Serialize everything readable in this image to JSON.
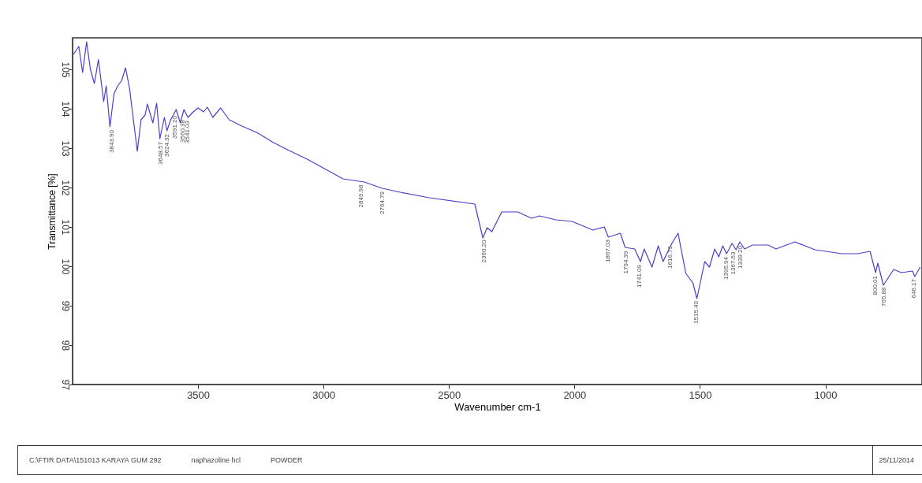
{
  "chart_data": {
    "type": "line",
    "xlabel": "Wavenumber cm-1",
    "ylabel": "Transmittance [%]",
    "x": [
      3997,
      3975,
      3960,
      3944,
      3929,
      3913,
      3897,
      3876,
      3866,
      3851,
      3835,
      3820,
      3804,
      3789,
      3773,
      3742,
      3727,
      3711,
      3702,
      3680,
      3665,
      3652,
      3634,
      3624,
      3609,
      3587,
      3571,
      3556,
      3540,
      3519,
      3500,
      3478,
      3463,
      3441,
      3410,
      3376,
      3332,
      3261,
      3199,
      3137,
      3065,
      2922,
      2837,
      2766,
      2694,
      2578,
      2397,
      2365,
      2348,
      2329,
      2290,
      2226,
      2171,
      2139,
      2074,
      2010,
      1926,
      1881,
      1865,
      1817,
      1798,
      1760,
      1737,
      1722,
      1691,
      1666,
      1647,
      1612,
      1587,
      1556,
      1528,
      1512,
      1481,
      1462,
      1441,
      1425,
      1409,
      1394,
      1372,
      1356,
      1341,
      1322,
      1291,
      1228,
      1197,
      1122,
      1041,
      934,
      872,
      822,
      800,
      791,
      769,
      728,
      697,
      653,
      644,
      622
    ],
    "values": [
      105.38,
      105.58,
      104.92,
      105.7,
      105.0,
      104.64,
      105.25,
      104.18,
      104.58,
      103.54,
      104.38,
      104.58,
      104.72,
      105.04,
      104.52,
      102.92,
      103.72,
      103.84,
      104.12,
      103.64,
      104.14,
      103.24,
      103.78,
      103.44,
      103.72,
      103.98,
      103.64,
      103.98,
      103.78,
      103.92,
      104.02,
      103.92,
      104.04,
      103.78,
      104.02,
      103.72,
      103.58,
      103.38,
      103.14,
      102.94,
      102.72,
      102.22,
      102.14,
      101.98,
      101.88,
      101.74,
      101.58,
      100.72,
      100.98,
      100.88,
      101.38,
      101.38,
      101.22,
      101.28,
      101.18,
      101.14,
      100.92,
      101.0,
      100.74,
      100.84,
      100.48,
      100.44,
      100.12,
      100.44,
      99.98,
      100.52,
      100.12,
      100.58,
      100.84,
      99.82,
      99.58,
      99.18,
      100.12,
      99.98,
      100.44,
      100.24,
      100.52,
      100.32,
      100.58,
      100.42,
      100.62,
      100.44,
      100.54,
      100.54,
      100.44,
      100.62,
      100.42,
      100.32,
      100.32,
      100.38,
      99.84,
      100.08,
      99.52,
      99.92,
      99.84,
      99.88,
      99.74,
      99.98
    ],
    "color": "#4b3fc8",
    "xlim": [
      4000,
      615
    ],
    "ylim": [
      97,
      105.8
    ],
    "xticks": [
      3500,
      3000,
      2500,
      2000,
      1500,
      1000
    ],
    "yticks": [
      97,
      98,
      99,
      100,
      101,
      102,
      103,
      104,
      105
    ],
    "grid": false,
    "legend": false,
    "annotations": [
      {
        "text": "3843.90",
        "x": 3843.9,
        "y": 103.54
      },
      {
        "text": "3648.57",
        "x": 3648.57,
        "y": 103.24
      },
      {
        "text": "3624.32",
        "x": 3624.32,
        "y": 103.44
      },
      {
        "text": "3591.20",
        "x": 3591.2,
        "y": 103.9
      },
      {
        "text": "3560.38",
        "x": 3560.38,
        "y": 103.8
      },
      {
        "text": "3541.03",
        "x": 3541.03,
        "y": 103.78
      },
      {
        "text": "2849.98",
        "x": 2849.98,
        "y": 102.15
      },
      {
        "text": "2764.79",
        "x": 2764.79,
        "y": 101.98
      },
      {
        "text": "2360.20",
        "x": 2360.2,
        "y": 100.75
      },
      {
        "text": "1867.03",
        "x": 1867.03,
        "y": 100.76
      },
      {
        "text": "1794.39",
        "x": 1794.39,
        "y": 100.47
      },
      {
        "text": "1741.09",
        "x": 1741.09,
        "y": 100.12
      },
      {
        "text": "1616.75",
        "x": 1616.75,
        "y": 100.6
      },
      {
        "text": "1515.40",
        "x": 1515.4,
        "y": 99.2
      },
      {
        "text": "1395.94",
        "x": 1395.94,
        "y": 100.32
      },
      {
        "text": "1367.63",
        "x": 1367.63,
        "y": 100.45
      },
      {
        "text": "1339.20",
        "x": 1339.2,
        "y": 100.6
      },
      {
        "text": "800.01",
        "x": 800.01,
        "y": 99.84
      },
      {
        "text": "765.88",
        "x": 765.88,
        "y": 99.55
      },
      {
        "text": "646.17",
        "x": 646.17,
        "y": 99.76
      },
      "C:\\FTIR DATA\\151013 KARAYA GUM 292",
      "naphazoline hcl",
      "POWDER",
      "25/11/2014"
    ]
  }
}
